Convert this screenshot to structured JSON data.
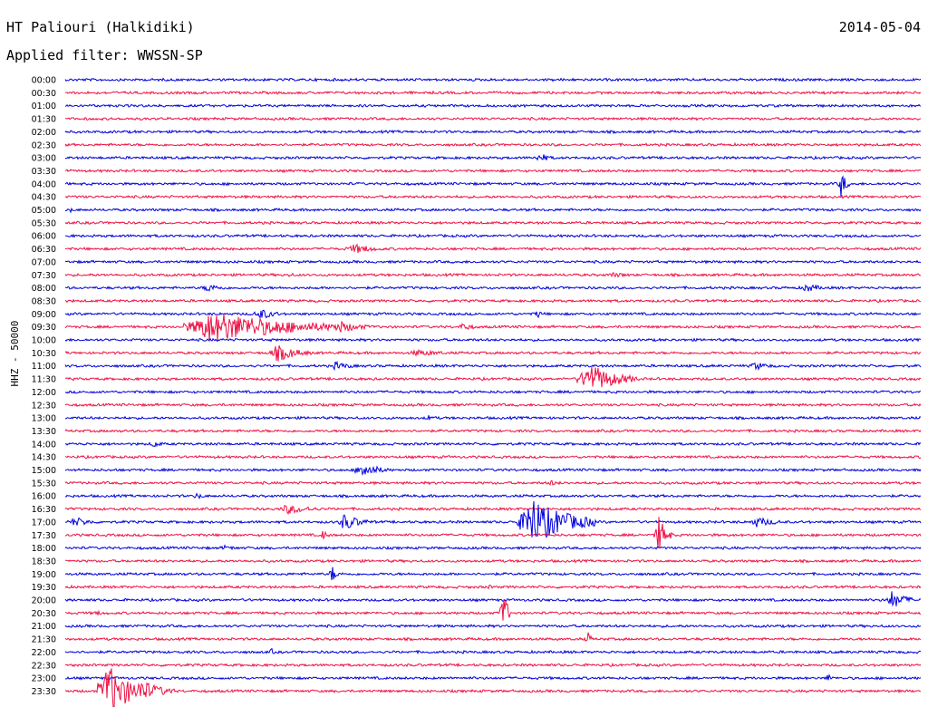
{
  "header": {
    "station": "HT Paliouri (Halkidiki)",
    "date": "2014-05-04",
    "filter": "Applied filter: WWSSN-SP"
  },
  "colors": {
    "blue": "#0000dd",
    "red": "#ee1144"
  },
  "chart_data": {
    "type": "line",
    "title": "HT Paliouri (Halkidiki)",
    "subtitle": "Applied filter: WWSSN-SP",
    "ylabel": "HHZ - 50000",
    "xlabel": "",
    "grid": false,
    "row_colors": [
      "blue",
      "red"
    ],
    "rows": [
      {
        "label": "00:00",
        "events": []
      },
      {
        "label": "00:30",
        "events": []
      },
      {
        "label": "01:00",
        "events": []
      },
      {
        "label": "01:30",
        "events": []
      },
      {
        "label": "02:00",
        "events": []
      },
      {
        "label": "02:30",
        "events": []
      },
      {
        "label": "03:00",
        "events": [
          {
            "pos": 0.55,
            "amp": 6,
            "dur": 0.025
          }
        ]
      },
      {
        "label": "03:30",
        "events": []
      },
      {
        "label": "04:00",
        "events": [
          {
            "pos": 0.905,
            "amp": 16,
            "dur": 0.012
          }
        ]
      },
      {
        "label": "04:30",
        "events": []
      },
      {
        "label": "05:00",
        "events": [
          {
            "pos": 0.005,
            "amp": 3,
            "dur": 0.01
          }
        ]
      },
      {
        "label": "05:30",
        "events": [
          {
            "pos": 0.47,
            "amp": 2,
            "dur": 0.03
          }
        ]
      },
      {
        "label": "06:00",
        "events": [
          {
            "pos": 0.105,
            "amp": 2,
            "dur": 0.005
          }
        ]
      },
      {
        "label": "06:30",
        "events": [
          {
            "pos": 0.33,
            "amp": 6,
            "dur": 0.05
          }
        ]
      },
      {
        "label": "07:00",
        "events": []
      },
      {
        "label": "07:30",
        "events": [
          {
            "pos": 0.26,
            "amp": 3,
            "dur": 0.015
          },
          {
            "pos": 0.63,
            "amp": 3,
            "dur": 0.06
          }
        ]
      },
      {
        "label": "08:00",
        "events": [
          {
            "pos": 0.16,
            "amp": 5,
            "dur": 0.04
          },
          {
            "pos": 0.86,
            "amp": 5,
            "dur": 0.04
          }
        ]
      },
      {
        "label": "08:30",
        "events": []
      },
      {
        "label": "09:00",
        "events": [
          {
            "pos": 0.22,
            "amp": 7,
            "dur": 0.04
          },
          {
            "pos": 0.55,
            "amp": 6,
            "dur": 0.01
          }
        ]
      },
      {
        "label": "09:30",
        "events": [
          {
            "pos": 0.14,
            "amp": 18,
            "dur": 0.2
          },
          {
            "pos": 0.31,
            "amp": 7,
            "dur": 0.06
          },
          {
            "pos": 0.46,
            "amp": 5,
            "dur": 0.03
          }
        ]
      },
      {
        "label": "10:00",
        "events": []
      },
      {
        "label": "10:30",
        "events": [
          {
            "pos": 0.24,
            "amp": 10,
            "dur": 0.05
          },
          {
            "pos": 0.4,
            "amp": 4,
            "dur": 0.07
          }
        ]
      },
      {
        "label": "11:00",
        "events": [
          {
            "pos": 0.31,
            "amp": 5,
            "dur": 0.04
          },
          {
            "pos": 0.8,
            "amp": 5,
            "dur": 0.04
          }
        ]
      },
      {
        "label": "11:30",
        "events": [
          {
            "pos": 0.6,
            "amp": 18,
            "dur": 0.07
          }
        ]
      },
      {
        "label": "12:00",
        "events": []
      },
      {
        "label": "12:30",
        "events": []
      },
      {
        "label": "13:00",
        "events": [
          {
            "pos": 0.42,
            "amp": 3,
            "dur": 0.03
          }
        ]
      },
      {
        "label": "13:30",
        "events": []
      },
      {
        "label": "14:00",
        "events": [
          {
            "pos": 0.1,
            "amp": 5,
            "dur": 0.02
          }
        ]
      },
      {
        "label": "14:30",
        "events": []
      },
      {
        "label": "15:00",
        "events": [
          {
            "pos": 0.34,
            "amp": 10,
            "dur": 0.04
          }
        ]
      },
      {
        "label": "15:30",
        "events": [
          {
            "pos": 0.56,
            "amp": 4,
            "dur": 0.03
          }
        ]
      },
      {
        "label": "16:00",
        "events": [
          {
            "pos": 0.15,
            "amp": 4,
            "dur": 0.02
          }
        ]
      },
      {
        "label": "16:30",
        "events": [
          {
            "pos": 0.25,
            "amp": 6,
            "dur": 0.06
          }
        ]
      },
      {
        "label": "17:00",
        "events": [
          {
            "pos": 0.005,
            "amp": 6,
            "dur": 0.04
          },
          {
            "pos": 0.32,
            "amp": 10,
            "dur": 0.04
          },
          {
            "pos": 0.53,
            "amp": 28,
            "dur": 0.09
          },
          {
            "pos": 0.8,
            "amp": 6,
            "dur": 0.05
          }
        ]
      },
      {
        "label": "17:30",
        "events": [
          {
            "pos": 0.3,
            "amp": 8,
            "dur": 0.01
          },
          {
            "pos": 0.69,
            "amp": 22,
            "dur": 0.02
          }
        ]
      },
      {
        "label": "18:00",
        "events": [
          {
            "pos": 0.18,
            "amp": 3,
            "dur": 0.04
          }
        ]
      },
      {
        "label": "18:30",
        "events": []
      },
      {
        "label": "19:00",
        "events": [
          {
            "pos": 0.31,
            "amp": 12,
            "dur": 0.01
          }
        ]
      },
      {
        "label": "19:30",
        "events": [
          {
            "pos": 0.49,
            "amp": 3,
            "dur": 0.02
          }
        ]
      },
      {
        "label": "20:00",
        "events": [
          {
            "pos": 0.96,
            "amp": 10,
            "dur": 0.04
          }
        ]
      },
      {
        "label": "20:30",
        "events": [
          {
            "pos": 0.03,
            "amp": 3,
            "dur": 0.03
          },
          {
            "pos": 0.51,
            "amp": 32,
            "dur": 0.01
          }
        ]
      },
      {
        "label": "21:00",
        "events": []
      },
      {
        "label": "21:30",
        "events": [
          {
            "pos": 0.61,
            "amp": 8,
            "dur": 0.008
          }
        ]
      },
      {
        "label": "22:00",
        "events": [
          {
            "pos": 0.24,
            "amp": 6,
            "dur": 0.006
          },
          {
            "pos": 0.51,
            "amp": 3,
            "dur": 0.004
          }
        ]
      },
      {
        "label": "22:30",
        "events": []
      },
      {
        "label": "23:00",
        "events": [
          {
            "pos": 0.89,
            "amp": 6,
            "dur": 0.01
          }
        ]
      },
      {
        "label": "23:30",
        "events": [
          {
            "pos": 0.04,
            "amp": 30,
            "dur": 0.06
          },
          {
            "pos": 0.08,
            "amp": 14,
            "dur": 0.05
          }
        ]
      }
    ]
  }
}
